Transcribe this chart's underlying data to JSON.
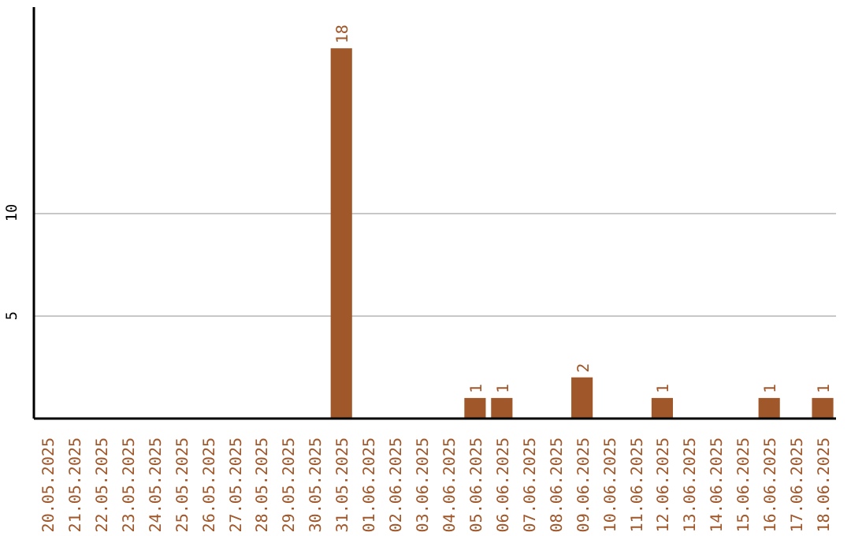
{
  "chart_data": {
    "type": "bar",
    "categories": [
      "20.05.2025",
      "21.05.2025",
      "22.05.2025",
      "23.05.2025",
      "24.05.2025",
      "25.05.2025",
      "26.05.2025",
      "27.05.2025",
      "28.05.2025",
      "29.05.2025",
      "30.05.2025",
      "31.05.2025",
      "01.06.2025",
      "02.06.2025",
      "03.06.2025",
      "04.06.2025",
      "05.06.2025",
      "06.06.2025",
      "07.06.2025",
      "08.06.2025",
      "09.06.2025",
      "10.06.2025",
      "11.06.2025",
      "12.06.2025",
      "13.06.2025",
      "14.06.2025",
      "15.06.2025",
      "16.06.2025",
      "17.06.2025",
      "18.06.2025"
    ],
    "values": [
      0,
      0,
      0,
      0,
      0,
      0,
      0,
      0,
      0,
      0,
      0,
      18,
      0,
      0,
      0,
      0,
      1,
      1,
      0,
      0,
      2,
      0,
      0,
      1,
      0,
      0,
      0,
      1,
      0,
      1
    ],
    "value_labels": [
      null,
      null,
      null,
      null,
      null,
      null,
      null,
      null,
      null,
      null,
      null,
      "18",
      null,
      null,
      null,
      null,
      "1",
      "1",
      null,
      null,
      "2",
      null,
      null,
      "1",
      null,
      null,
      null,
      "1",
      null,
      "1"
    ],
    "color": "#a0572a",
    "ylim": [
      0,
      20
    ],
    "yticks": [
      5,
      10
    ],
    "grid": "y"
  }
}
